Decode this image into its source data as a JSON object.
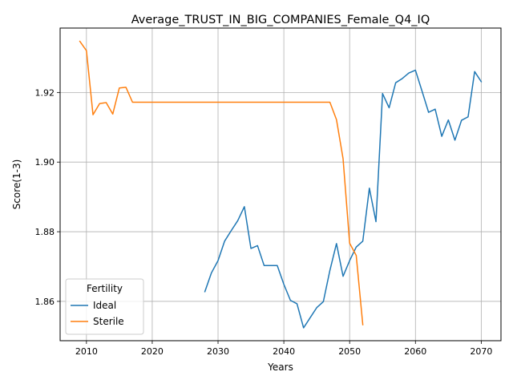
{
  "chart_data": {
    "type": "line",
    "title": "Average_TRUST_IN_BIG_COMPANIES_Female_Q4_IQ",
    "xlabel": "Years",
    "ylabel": "Score(1-3)",
    "xlim": [
      2006,
      2073
    ],
    "ylim": [
      1.8487,
      1.9385
    ],
    "xticks": [
      2010,
      2020,
      2030,
      2040,
      2050,
      2060,
      2070
    ],
    "yticks": [
      1.86,
      1.88,
      1.9,
      1.92
    ],
    "ytick_labels": [
      "1.86",
      "1.88",
      "1.90",
      "1.92"
    ],
    "grid": true,
    "legend": {
      "title": "Fertility",
      "position": "lower-left"
    },
    "series": [
      {
        "name": "Ideal",
        "color": "#1f77b4",
        "x": [
          2028,
          2029,
          2030,
          2031,
          2032,
          2033,
          2034,
          2035,
          2036,
          2037,
          2038,
          2039,
          2040,
          2041,
          2042,
          2043,
          2044,
          2045,
          2046,
          2047,
          2048,
          2049,
          2050,
          2051,
          2052,
          2053,
          2054,
          2055,
          2056,
          2057,
          2058,
          2059,
          2060,
          2061,
          2062,
          2063,
          2064,
          2065,
          2066,
          2067,
          2068,
          2069,
          2070
        ],
        "y": [
          1.8628,
          1.8682,
          1.8717,
          1.8773,
          1.8803,
          1.8832,
          1.8872,
          1.8752,
          1.876,
          1.8703,
          1.8703,
          1.8703,
          1.8649,
          1.8603,
          1.8593,
          1.8524,
          1.8553,
          1.8582,
          1.8599,
          1.8689,
          1.8766,
          1.8672,
          1.8717,
          1.8756,
          1.8773,
          1.8925,
          1.8829,
          1.9197,
          1.9156,
          1.9228,
          1.924,
          1.9256,
          1.9264,
          1.9204,
          1.9143,
          1.9152,
          1.9074,
          1.9121,
          1.9063,
          1.912,
          1.913,
          1.926,
          1.9231
        ]
      },
      {
        "name": "Sterile",
        "color": "#ff7f0e",
        "x": [
          2009,
          2010,
          2011,
          2012,
          2013,
          2014,
          2015,
          2016,
          2017,
          2018,
          2019,
          2020,
          2021,
          2022,
          2023,
          2024,
          2025,
          2026,
          2027,
          2028,
          2029,
          2030,
          2031,
          2032,
          2033,
          2034,
          2035,
          2036,
          2037,
          2038,
          2039,
          2040,
          2041,
          2042,
          2043,
          2044,
          2045,
          2046,
          2047,
          2048,
          2049,
          2050,
          2051,
          2052
        ],
        "y": [
          1.9347,
          1.932,
          1.9136,
          1.9168,
          1.9171,
          1.9138,
          1.9213,
          1.9215,
          1.9172,
          1.9172,
          1.9172,
          1.9172,
          1.9172,
          1.9172,
          1.9172,
          1.9172,
          1.9172,
          1.9172,
          1.9172,
          1.9172,
          1.9172,
          1.9172,
          1.9172,
          1.9172,
          1.9172,
          1.9172,
          1.9172,
          1.9172,
          1.9172,
          1.9172,
          1.9172,
          1.9172,
          1.9172,
          1.9172,
          1.9172,
          1.9172,
          1.9172,
          1.9172,
          1.9172,
          1.9122,
          1.901,
          1.8767,
          1.8732,
          1.8533
        ]
      }
    ]
  }
}
